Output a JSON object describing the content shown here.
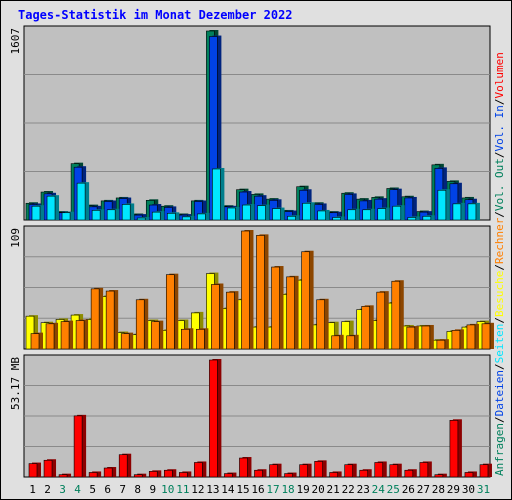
{
  "chart_data": {
    "type": "bar",
    "title": "Tages-Statistik im Monat Dezember 2022",
    "days": [
      "1",
      "2",
      "3",
      "4",
      "5",
      "6",
      "7",
      "8",
      "9",
      "10",
      "11",
      "12",
      "13",
      "14",
      "15",
      "16",
      "17",
      "18",
      "19",
      "20",
      "21",
      "22",
      "23",
      "24",
      "25",
      "26",
      "27",
      "28",
      "29",
      "30",
      "31"
    ],
    "weekend_days": [
      "3",
      "4",
      "10",
      "11",
      "17",
      "18",
      "24",
      "25",
      "31"
    ],
    "panels": [
      {
        "name": "top",
        "axis_max_label": "1607",
        "ylim": [
          0,
          1607
        ],
        "series": [
          {
            "name": "Anfragen",
            "color": "#00805c",
            "values": [
              150,
              245,
              75,
              485,
              130,
              170,
              195,
              55,
              175,
              125,
              55,
              170,
              1607,
              125,
              265,
              225,
              185,
              85,
              290,
              150,
              75,
              235,
              185,
              200,
              275,
              205,
              80,
              475,
              335,
              195,
              0
            ]
          },
          {
            "name": "Dateien",
            "color": "#0042e6",
            "values": [
              140,
              230,
              70,
              455,
              120,
              165,
              190,
              50,
              135,
              115,
              50,
              165,
              1560,
              120,
              245,
              210,
              175,
              80,
              260,
              140,
              70,
              225,
              170,
              185,
              265,
              195,
              75,
              445,
              315,
              180,
              0
            ]
          },
          {
            "name": "Seiten",
            "color": "#00e6ff",
            "values": [
              125,
              210,
              70,
              320,
              90,
              95,
              140,
              25,
              75,
              65,
              35,
              60,
              440,
              110,
              135,
              130,
              105,
              40,
              150,
              85,
              30,
              95,
              95,
              105,
              125,
              30,
              40,
              260,
              145,
              145,
              0
            ]
          }
        ]
      },
      {
        "name": "middle",
        "axis_max_label": "109",
        "ylim": [
          0,
          109
        ],
        "series": [
          {
            "name": "Besuche",
            "color": "#ffff00",
            "values": [
              31,
              25,
              28,
              32,
              28,
              49,
              16,
              14,
              27,
              18,
              27,
              34,
              70,
              38,
              46,
              21,
              21,
              51,
              64,
              23,
              25,
              26,
              37,
              27,
              43,
              22,
              22,
              9,
              17,
              21,
              26
            ]
          },
          {
            "name": "Rechner",
            "color": "#ff8000",
            "values": [
              15,
              24,
              26,
              27,
              56,
              54,
              15,
              46,
              26,
              69,
              19,
              19,
              60,
              53,
              109,
              105,
              76,
              67,
              90,
              46,
              13,
              13,
              40,
              53,
              63,
              21,
              22,
              9,
              18,
              23,
              24
            ]
          }
        ]
      },
      {
        "name": "bottom",
        "axis_max_label": "53.17 MB",
        "ylim": [
          0,
          53.17
        ],
        "series": [
          {
            "name": "Volumen",
            "color": "#ff0000",
            "values": [
              6.5,
              8.0,
              1.5,
              28.0,
              2.5,
              4.5,
              10.5,
              1.5,
              3.0,
              3.5,
              2.5,
              7.0,
              53.17,
              2.0,
              9.0,
              3.5,
              6.0,
              2.0,
              6.0,
              7.5,
              2.5,
              6.0,
              3.5,
              7.0,
              6.0,
              3.5,
              7.0,
              1.5,
              26.0,
              2.5,
              6.0
            ]
          }
        ]
      }
    ],
    "right_labels": [
      [
        {
          "text": "Anfragen",
          "color": "#00805c"
        },
        {
          "text": "/",
          "color": "#000000"
        },
        {
          "text": "Dateien",
          "color": "#0042e6"
        },
        {
          "text": "/",
          "color": "#000000"
        },
        {
          "text": "Seiten",
          "color": "#00e6ff"
        },
        {
          "text": "/",
          "color": "#000000"
        },
        {
          "text": "Besuche",
          "color": "#ffff00"
        },
        {
          "text": "/",
          "color": "#000000"
        },
        {
          "text": "Rechner",
          "color": "#ff8000"
        },
        {
          "text": "/",
          "color": "#000000"
        },
        {
          "text": "Vol. Out",
          "color": "#00805c"
        },
        {
          "text": "/",
          "color": "#000000"
        },
        {
          "text": "Vol. In",
          "color": "#0042e6"
        },
        {
          "text": "/",
          "color": "#000000"
        },
        {
          "text": "Volumen",
          "color": "#ff0000"
        }
      ]
    ],
    "colors": {
      "title": "#0000ff",
      "weekday_label": "#000000",
      "weekend_label": "#00805c",
      "plot_background": "#c0c0c0",
      "outer_background": "#e0e0e0"
    }
  }
}
